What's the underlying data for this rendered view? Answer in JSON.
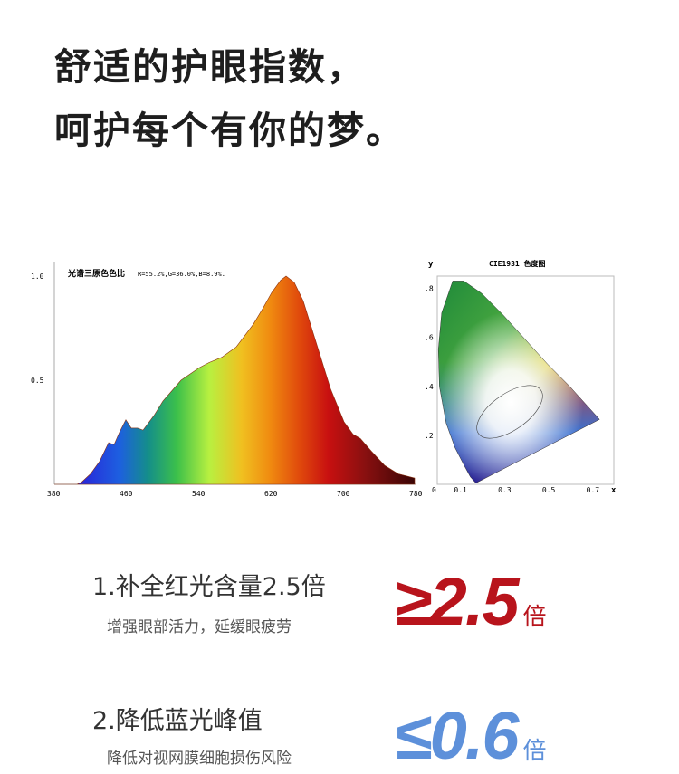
{
  "headline": {
    "line1": "舒适的护眼指数，",
    "line2": "呵护每个有你的梦。"
  },
  "chart_data": [
    {
      "type": "area",
      "title": "光谱三原色色比",
      "annotation": "R=55.2%,G=36.0%,B=8.9%.",
      "xlim": [
        380,
        780
      ],
      "ylim": [
        0,
        1.0
      ],
      "xticks": [
        "380",
        "460",
        "540",
        "620",
        "700",
        "780"
      ],
      "yticks": [
        "0.5",
        "1.0"
      ],
      "grid": false,
      "x": [
        380,
        405,
        410,
        420,
        430,
        440,
        446,
        452,
        459,
        465,
        472,
        478,
        490,
        500,
        520,
        540,
        551,
        565,
        581,
        600,
        611,
        620,
        630,
        636,
        645,
        655,
        665,
        675,
        685,
        700,
        710,
        718,
        730,
        745,
        760,
        778
      ],
      "y": [
        0,
        0,
        0.01,
        0.05,
        0.11,
        0.2,
        0.19,
        0.25,
        0.31,
        0.27,
        0.27,
        0.26,
        0.33,
        0.4,
        0.5,
        0.56,
        0.585,
        0.61,
        0.66,
        0.77,
        0.85,
        0.92,
        0.98,
        1.0,
        0.97,
        0.88,
        0.74,
        0.6,
        0.46,
        0.3,
        0.24,
        0.22,
        0.16,
        0.09,
        0.05,
        0.03
      ]
    },
    {
      "type": "scatter",
      "title": "CIE1931 色度图",
      "xlabel": "x",
      "ylabel": "y",
      "xlim": [
        0,
        0.8
      ],
      "ylim": [
        0,
        0.85
      ],
      "xticks": [
        "0",
        "0.1",
        "0.3",
        "0.5",
        "0.7"
      ],
      "yticks": [
        ".2",
        ".4",
        ".6",
        ".8"
      ],
      "locus_x": [
        0.175,
        0.17,
        0.15,
        0.12,
        0.08,
        0.04,
        0.01,
        0.005,
        0.02,
        0.07,
        0.12,
        0.2,
        0.3,
        0.4,
        0.5,
        0.6,
        0.735,
        0.175
      ],
      "locus_y": [
        0.005,
        0.01,
        0.03,
        0.08,
        0.15,
        0.25,
        0.4,
        0.55,
        0.7,
        0.83,
        0.83,
        0.78,
        0.69,
        0.59,
        0.49,
        0.4,
        0.265,
        0.005
      ]
    }
  ],
  "features": [
    {
      "title": "1.补全红光含量2.5倍",
      "subtitle": "增强眼部活力，延缓眼疲劳",
      "value": "≥2.5",
      "unit": "倍",
      "color": "#b8141c"
    },
    {
      "title": "2.降低蓝光峰值",
      "subtitle": "降低对视网膜细胞损伤风险",
      "value": "≤0.6",
      "unit": "倍",
      "color": "#5d90da"
    }
  ]
}
